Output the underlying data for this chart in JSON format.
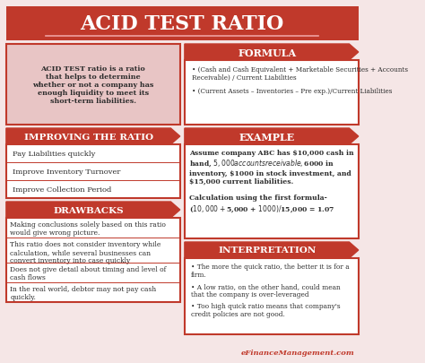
{
  "title": "ACID TEST RATIO",
  "title_bg": "#c0392b",
  "title_color": "#ffffff",
  "bg_color": "#f5e6e6",
  "header_red": "#c0392b",
  "header_text_color": "#ffffff",
  "light_red_bg": "#e8c5c5",
  "white_bg": "#ffffff",
  "border_color": "#c0392b",
  "text_dark": "#2c2c2c",
  "watermark": "eFinanceManagement.com",
  "watermark_color": "#c0392b",
  "definition_text": "ACID TEST ratio is a ratio\nthat helps to determine\nwhether or not a company has\nenough liquidity to meet its\nshort-term liabilities.",
  "formula_title": "FORMULA",
  "formula_bullets": [
    "(Cash and Cash Equivalent + Marketable Securities + Accounts\nReceivable) / Current Liabilities",
    "(Current Assets – Inventories – Pre exp.)/Current Liabilities"
  ],
  "improve_title": "IMPROVING THE RATIO",
  "improve_items": [
    "Pay Liabilities quickly",
    "Improve Inventory Turnover",
    "Improve Collection Period"
  ],
  "example_title": "EXAMPLE",
  "example_text": "Assume company ABC has $10,000 cash in\nhand, $5,000 accounts receivable, $6000 in\ninventory, $1000 in stock investment, and\n$15,000 current liabilities.\n\nCalculation using the first formula-\n($10,000 + $5,000 + $1000)/ $15,000 = 1.07",
  "drawbacks_title": "DRAWBACKS",
  "drawbacks_items": [
    "Making conclusions solely based on this ratio\nwould give wrong picture.",
    "This ratio does not consider inventory while\ncalculation, while several businesses can\nconvert inventory into case quickly",
    "Does not give detail about timing and level of\ncash flows",
    "In the real world, debtor may not pay cash\nquickly."
  ],
  "interp_title": "INTERPRETATION",
  "interp_bullets": [
    "The more the quick ratio, the better it is for a\nfirm.",
    "A low ratio, on the other hand, could mean\nthat the company is over-leveraged",
    "Too high quick ratio means that company's\ncredit policies are not good."
  ]
}
